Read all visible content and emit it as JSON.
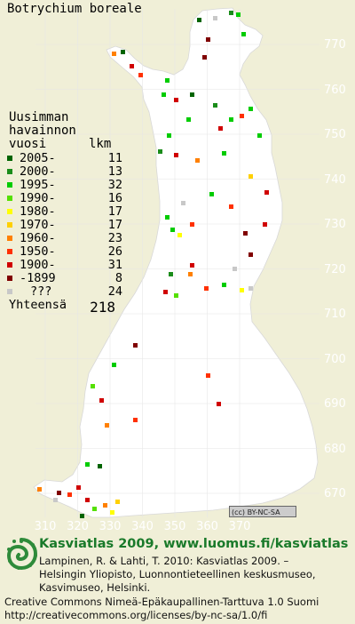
{
  "title": "Botrychium boreale",
  "legend": {
    "heading_lines": [
      "Uusimman",
      "havainnon"
    ],
    "col_label": "vuosi",
    "col_count": "lkm",
    "rows": [
      {
        "label": "2005-",
        "count": "11",
        "color": "#006400"
      },
      {
        "label": "2000-",
        "count": "13",
        "color": "#1a8c1a"
      },
      {
        "label": "1995-",
        "count": "32",
        "color": "#00cc00"
      },
      {
        "label": "1990-",
        "count": "16",
        "color": "#55e000"
      },
      {
        "label": "1980-",
        "count": "17",
        "color": "#ffff00"
      },
      {
        "label": "1970-",
        "count": "17",
        "color": "#ffd000"
      },
      {
        "label": "1960-",
        "count": "23",
        "color": "#ff8000"
      },
      {
        "label": "1950-",
        "count": "26",
        "color": "#ff3000"
      },
      {
        "label": "1900-",
        "count": "31",
        "color": "#d00000"
      },
      {
        "label": "-1899",
        "count": "8",
        "color": "#800000"
      },
      {
        "label": "???",
        "count": "24",
        "color": "#c8c8c8"
      }
    ],
    "total_label": "Yhteensä",
    "total_count": "218"
  },
  "y_axis_labels": [
    "770",
    "760",
    "750",
    "740",
    "730",
    "720",
    "710",
    "700",
    "690",
    "680",
    "670"
  ],
  "x_axis_labels": [
    "310",
    "320",
    "330",
    "340",
    "350",
    "360",
    "370"
  ],
  "license_badge": "BY-NC-SA",
  "brand": "Kasviatlas 2009, www.luomus.fi/kasviatlas",
  "citation_lines": [
    "Lampinen, R. & Lahti, T. 2010: Kasviatlas 2009. –",
    "Helsingin Yliopisto, Luonnontieteellinen keskusmuseo,",
    "Kasvimuseo, Helsinki."
  ],
  "footer_lines": [
    "Creative Commons Nimeä-Epäkaupallinen-Tarttuva 1.0 Suomi",
    "http://creativecommons.org/licenses/by-nc-sa/1.0/fi"
  ]
}
